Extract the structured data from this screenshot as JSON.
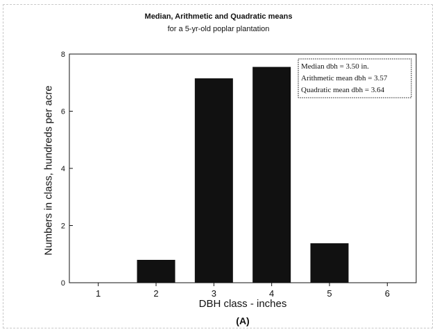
{
  "chart_data": {
    "type": "bar",
    "title": "Median, Arithmetic and Quadratic means",
    "subtitle": "for a 5-yr-old poplar plantation",
    "xlabel": "DBH class - inches",
    "ylabel": "Numbers in class, hundreds per acre",
    "caption": "(A)",
    "categories": [
      "1",
      "2",
      "3",
      "4",
      "5",
      "6"
    ],
    "values": [
      0,
      0.8,
      7.15,
      7.55,
      1.38,
      0
    ],
    "ylim": [
      0,
      8
    ],
    "yticks": [
      "0",
      "2",
      "4",
      "6",
      "8"
    ],
    "grid": false,
    "bar_color": "#111111",
    "annotation": [
      "Median dbh = 3.50 in.",
      "Arithmetic mean dbh = 3.57",
      "Quadratic mean dbh = 3.64"
    ],
    "annotation_position": "top-right"
  }
}
